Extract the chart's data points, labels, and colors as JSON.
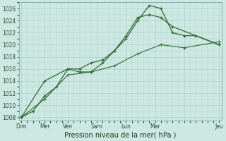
{
  "xlabel": "Pression niveau de la mer( hPa )",
  "background_color": "#cde8e2",
  "grid_color": "#aad0c8",
  "line_color": "#2d6a2d",
  "ylim": [
    1007.5,
    1027
  ],
  "yticks": [
    1008,
    1010,
    1012,
    1014,
    1016,
    1018,
    1020,
    1022,
    1024,
    1026
  ],
  "xlim": [
    -0.2,
    17.2
  ],
  "x_day_positions": [
    0,
    2,
    4,
    6.5,
    9,
    11.5,
    14,
    17
  ],
  "x_day_labels": [
    "Dim",
    "Mer",
    "Ven",
    "Sam",
    "Lun",
    "Mar",
    "",
    "Jeu"
  ],
  "series1_x": [
    0,
    1,
    2,
    3,
    4,
    5,
    6,
    7,
    8,
    9,
    10,
    11,
    12,
    13,
    14,
    15,
    17
  ],
  "series1_y": [
    1008,
    1009,
    1011.5,
    1013,
    1016,
    1016,
    1017,
    1017.5,
    1019,
    1021,
    1024,
    1026.5,
    1026,
    1022,
    1021.5,
    1021.5,
    1020
  ],
  "series2_x": [
    0,
    2,
    4,
    5,
    6,
    7,
    8,
    9,
    10,
    11,
    12,
    13,
    17
  ],
  "series2_y": [
    1008,
    1014,
    1016,
    1015.5,
    1015.5,
    1017,
    1019,
    1021.5,
    1024.5,
    1025,
    1024.5,
    1023,
    1020
  ],
  "series3_x": [
    0,
    2,
    4,
    6,
    8,
    10,
    12,
    14,
    17
  ],
  "series3_y": [
    1008,
    1011,
    1015,
    1015.5,
    1016.5,
    1018.5,
    1020,
    1019.5,
    1020.5
  ]
}
